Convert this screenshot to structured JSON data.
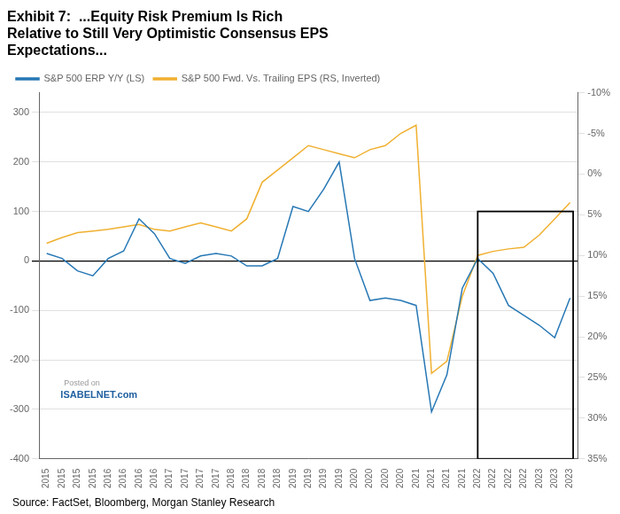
{
  "chart_data": {
    "type": "line",
    "title": [
      "Exhibit 7:  ...Equity Risk Premium Is Rich",
      "Relative to Still Very Optimistic Consensus EPS",
      "Expectations..."
    ],
    "source": "Source: FactSet, Bloomberg, Morgan Stanley Research",
    "annotations": [
      "Posted on",
      "ISABELNET.com"
    ],
    "categories": [
      "2015",
      "2015",
      "2015",
      "2015",
      "2016",
      "2016",
      "2016",
      "2016",
      "2017",
      "2017",
      "2017",
      "2017",
      "2018",
      "2018",
      "2018",
      "2018",
      "2019",
      "2019",
      "2019",
      "2019",
      "2020",
      "2020",
      "2020",
      "2020",
      "2021",
      "2021",
      "2021",
      "2021",
      "2022",
      "2022",
      "2022",
      "2022",
      "2023",
      "2023",
      "2023"
    ],
    "series": [
      {
        "name": "S&P 500 ERP Y/Y (LS)",
        "color": "#2778b5",
        "axis": "y",
        "values": [
          15,
          5,
          -20,
          -30,
          5,
          20,
          85,
          55,
          5,
          -5,
          10,
          15,
          10,
          -10,
          -10,
          5,
          110,
          100,
          145,
          200,
          5,
          -80,
          -75,
          -80,
          -90,
          -305,
          -230,
          -55,
          5,
          -25,
          -90,
          -110,
          -130,
          -155,
          -75
        ]
      },
      {
        "name": "S&P 500 Fwd. Vs. Trailing EPS (RS, Inverted)",
        "color": "#f0b030",
        "axis": "y2",
        "values": [
          8.5,
          7.8,
          7.2,
          7.0,
          6.8,
          6.5,
          6.2,
          6.8,
          7.0,
          6.5,
          6.0,
          6.5,
          7.0,
          5.5,
          1.0,
          -0.5,
          -2.0,
          -3.5,
          -3.0,
          -2.5,
          -2.0,
          -3.0,
          -3.5,
          -5.0,
          -6.0,
          24.5,
          23.0,
          15.0,
          10.0,
          9.5,
          9.2,
          9.0,
          7.5,
          5.5,
          3.5
        ]
      }
    ],
    "ylim": [
      -400,
      340
    ],
    "yticks": [
      -400,
      -300,
      -200,
      -100,
      0,
      100,
      200,
      300
    ],
    "y2lim": [
      35,
      -10
    ],
    "y2ticks": [
      {
        "value": 35,
        "label": "35%"
      },
      {
        "value": 30,
        "label": "30%"
      },
      {
        "value": 25,
        "label": "25%"
      },
      {
        "value": 20,
        "label": "20%"
      },
      {
        "value": 15,
        "label": "15%"
      },
      {
        "value": 10,
        "label": "10%"
      },
      {
        "value": 5,
        "label": "5%"
      },
      {
        "value": 0,
        "label": "0%"
      },
      {
        "value": -5,
        "label": "-5%"
      },
      {
        "value": -10,
        "label": "-10%"
      }
    ],
    "highlight": {
      "x": [
        28,
        34.2
      ],
      "y": [
        -400,
        100
      ]
    },
    "grid": "y",
    "legend": "upper left"
  }
}
